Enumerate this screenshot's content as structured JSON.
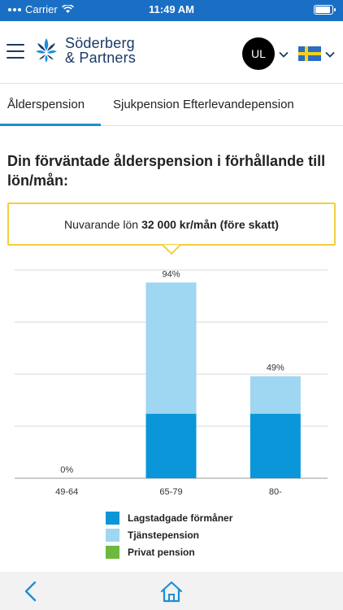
{
  "status_bar": {
    "carrier": "Carrier",
    "time": "11:49 AM"
  },
  "header": {
    "logo_line1": "Söderberg",
    "logo_line2": "& Partners",
    "avatar_initials": "UL",
    "language_flag": "sweden-flag-icon"
  },
  "tabs": [
    {
      "label": "Ålderspension",
      "active": true
    },
    {
      "label": "Sjukpension",
      "active": false
    },
    {
      "label": "Efterlevandepension",
      "active": false
    }
  ],
  "heading": "Din förväntade ålderspension i förhållande till lön/mån:",
  "callout": {
    "prefix": "Nuvarande lön",
    "value": "32 000 kr/mån (före skatt)"
  },
  "chart_data": {
    "type": "bar",
    "stacked": true,
    "categories": [
      "49-64",
      "65-79",
      "80-"
    ],
    "series": [
      {
        "name": "Lagstadgade förmåner",
        "color": "#0a96d8",
        "values": [
          0,
          31,
          31
        ]
      },
      {
        "name": "Tjänstepension",
        "color": "#9fd6f1",
        "values": [
          0,
          63,
          18
        ]
      },
      {
        "name": "Privat pension",
        "color": "#6db83f",
        "values": [
          0,
          0,
          0
        ]
      }
    ],
    "data_labels": [
      "0%",
      "94%",
      "49%"
    ],
    "ylim": [
      0,
      100
    ],
    "grid": true,
    "legend_position": "bottom"
  },
  "colors": {
    "brand_blue": "#1a6fc4",
    "accent": "#1b8fd6",
    "callout_border": "#f2cf3e"
  },
  "bottom_nav": {
    "back_icon": "chevron-left-icon",
    "home_icon": "home-icon"
  }
}
